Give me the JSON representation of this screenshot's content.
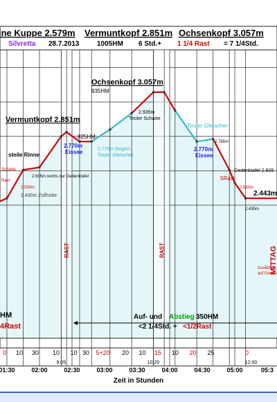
{
  "header": {
    "line1": [
      {
        "text": "ine Kuppe 2.579m",
        "x_hint": "left"
      },
      {
        "text": "Vermuntkopf 2.851m",
        "x_hint": "mid"
      },
      {
        "text": "Ochsenkopf 3.057m",
        "x_hint": "right"
      }
    ],
    "group": "Silvretta",
    "date": "28.7.2013",
    "hm": "1005HM",
    "time_a": "6 Std.+",
    "time_rest": "1 1/4 Rast",
    "time_b": "= 7 1/4Std."
  },
  "colors": {
    "header_red": "#d40000",
    "profile_red": "#d40000",
    "profile_cyan": "#33b9c8",
    "fill": "#e4f6f8",
    "grid": "#333333",
    "header_purple": "#8a2be2",
    "accent_green": "#009900",
    "accent_blue": "#1a1aff",
    "band_bg": "#dff3f5"
  },
  "chart_data": {
    "type": "area",
    "title": "",
    "xlabel": "Zeit in Stunden",
    "ylabel": "",
    "x_ticks": [
      "01:30",
      "02:00",
      "02:30",
      "03:00",
      "03:30",
      "04:00",
      "04:30",
      "05:00",
      "05:3"
    ],
    "x_ticks_extra": [
      {
        "label": "9:05",
        "at": "02:20"
      },
      {
        "label": "10:20",
        "at": "03:45"
      },
      {
        "label": "12:00",
        "at": "05:15"
      }
    ],
    "profile": [
      {
        "t": "01:15",
        "h": 2400,
        "seg": "red"
      },
      {
        "t": "01:30",
        "h": 2440,
        "seg": "red"
      },
      {
        "t": "01:45",
        "h": 2605,
        "seg": "red"
      },
      {
        "t": "02:00",
        "h": 2620,
        "seg": "red"
      },
      {
        "t": "02:20",
        "h": 2800,
        "seg": "red"
      },
      {
        "t": "02:25",
        "h": 2825,
        "seg": "red"
      },
      {
        "t": "02:37",
        "h": 2770,
        "seg": "red"
      },
      {
        "t": "02:48",
        "h": 2770,
        "seg": "cyan"
      },
      {
        "t": "03:05",
        "h": 2840,
        "seg": "cyan"
      },
      {
        "t": "03:25",
        "h": 2935,
        "seg": "red"
      },
      {
        "t": "03:45",
        "h": 3057,
        "seg": "red"
      },
      {
        "t": "03:55",
        "h": 3057,
        "seg": "red"
      },
      {
        "t": "04:05",
        "h": 2950,
        "seg": "cyan"
      },
      {
        "t": "04:25",
        "h": 2770,
        "seg": "cyan"
      },
      {
        "t": "04:40",
        "h": 2785,
        "seg": "red"
      },
      {
        "t": "04:55",
        "h": 2605,
        "seg": "red"
      },
      {
        "t": "05:00",
        "h": 2530,
        "seg": "red"
      },
      {
        "t": "05:10",
        "h": 2440,
        "seg": "red"
      },
      {
        "t": "05:40",
        "h": 2440,
        "seg": "red"
      }
    ],
    "rast_columns": [
      {
        "from": "02:20",
        "to": "02:30",
        "label": "RAST"
      },
      {
        "from": "03:45",
        "to": "04:00",
        "label": "RAST"
      }
    ],
    "peak_labels": [
      {
        "text": "Vermuntkopf 2.851m",
        "sub": "825HM"
      },
      {
        "text": "Ochsenkopf 3.057m",
        "sub": "935HM"
      }
    ],
    "annotations": [
      {
        "text": "steile Rinne"
      },
      {
        "text": "2.605m rechts zur Gedenktafel"
      },
      {
        "text": "2.530m"
      },
      {
        "text": "2.490m Zollhütte"
      },
      {
        "text": "Scharte"
      },
      {
        "text": "Rast"
      },
      {
        "text": "2.770m",
        "sub": "Eissee"
      },
      {
        "text": "2.770m Beginn",
        "sub": "Tiroler Gletscher"
      },
      {
        "text": "2.935m",
        "sub": "Tiroler Scharte"
      },
      {
        "text": "Tiroler Gletscher"
      },
      {
        "text": "2.770m",
        "sub": "Eissee"
      },
      {
        "text": "2.785m"
      },
      {
        "text": "Gedenktafel 2.605"
      },
      {
        "text": "5Rast"
      },
      {
        "text": "2.530m"
      },
      {
        "text": "2.443m"
      },
      {
        "text": "2.435m"
      },
      {
        "text": "MITTAG"
      },
      {
        "text": "zusätzlich",
        "sub": "auf Grupp"
      },
      {
        "text": "HM"
      },
      {
        "text": "4Rast"
      }
    ],
    "summary": {
      "line1_a": "Auf- und",
      "line1_b": "Abstieg",
      "line1_c": "350HM",
      "line2_a": "<2 1/4Std. +",
      "line2_b": "<1/2Rast"
    },
    "segments_row": [
      "0",
      "10",
      "30",
      "10",
      "10",
      "30",
      "5+20",
      "20",
      "10",
      "15",
      "10",
      "20",
      "25",
      "0"
    ]
  }
}
